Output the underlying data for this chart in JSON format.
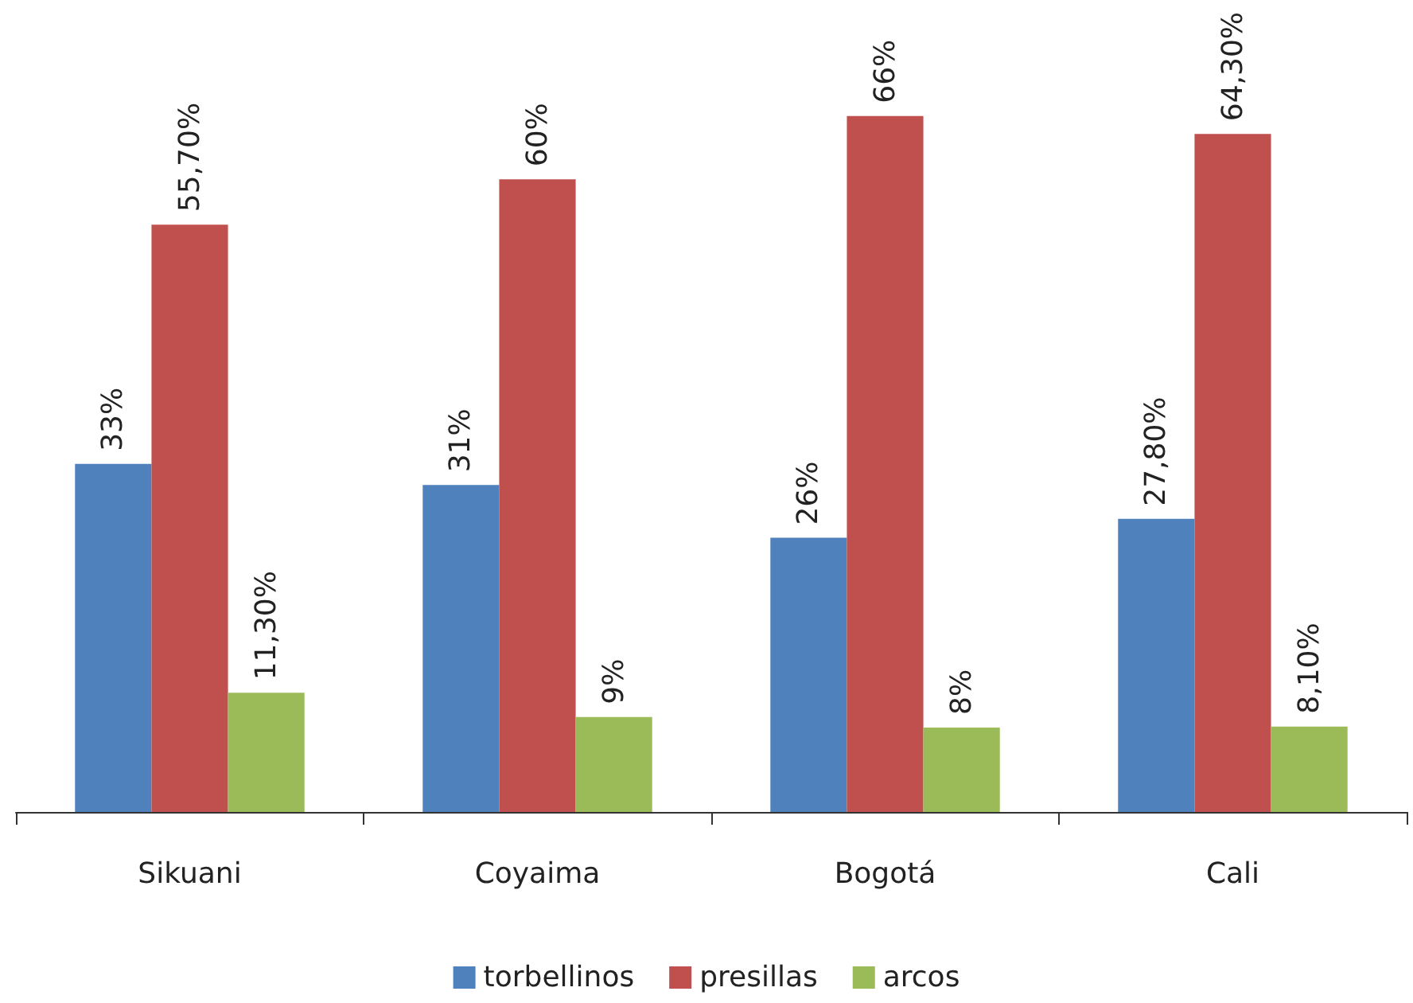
{
  "chart_data": {
    "type": "bar",
    "categories": [
      "Sikuani",
      "Coyaima",
      "Bogotá",
      "Cali"
    ],
    "series": [
      {
        "name": "torbellinos",
        "color": "#4f81bd",
        "values": [
          33,
          31,
          26,
          27.8
        ],
        "value_labels": [
          "33%",
          "31%",
          "26%",
          "27,80%"
        ]
      },
      {
        "name": "presillas",
        "color": "#c0504d",
        "values": [
          55.7,
          60,
          66,
          64.3
        ],
        "value_labels": [
          "55,70%",
          "60%",
          "66%",
          "64,30%"
        ]
      },
      {
        "name": "arcos",
        "color": "#9bbb59",
        "values": [
          11.3,
          9,
          8,
          8.1
        ],
        "value_labels": [
          "11,30%",
          "9%",
          "8%",
          "8,10%"
        ]
      }
    ],
    "legend": "bottom"
  }
}
